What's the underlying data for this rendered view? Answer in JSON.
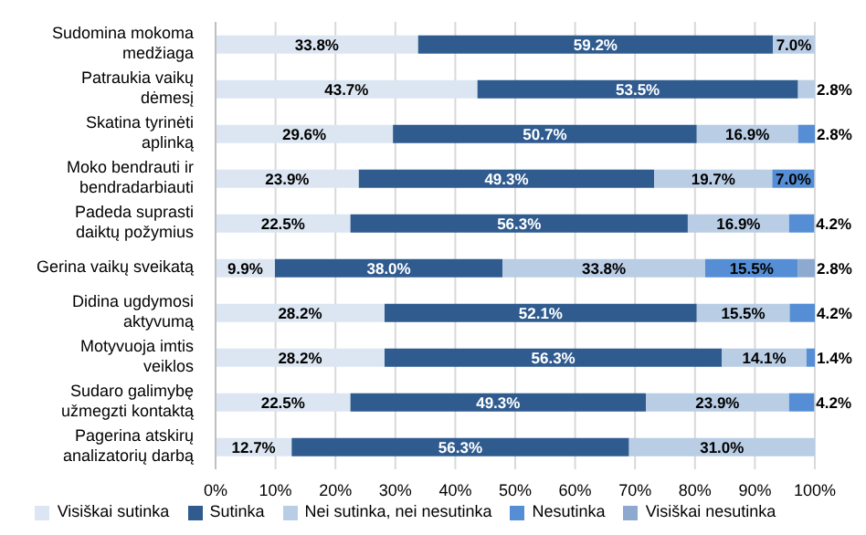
{
  "chart_data": {
    "type": "bar",
    "orientation": "horizontal",
    "stacked": true,
    "categories": [
      "Sudomina mokoma medžiaga",
      "Patraukia vaikų dėmesį",
      "Skatina tyrinėti aplinką",
      "Moko bendrauti ir bendradarbiauti",
      "Padeda suprasti daiktų požymius",
      "Gerina vaikų sveikatą",
      "Didina ugdymosi aktyvumą",
      "Motyvuoja imtis veiklos",
      "Sudaro galimybę užmegzti kontaktą",
      "Pagerina atskirų analizatorių darbą"
    ],
    "series": [
      {
        "name": "Visiškai sutinka",
        "color": "#dce6f2",
        "values": [
          33.8,
          43.7,
          29.6,
          23.9,
          22.5,
          9.9,
          28.2,
          28.2,
          22.5,
          12.7
        ],
        "value_labels": [
          "33.8%",
          "43.7%",
          "29.6%",
          "23.9%",
          "22.5%",
          "9.9%",
          "28.2%",
          "28.2%",
          "22.5%",
          "12.7%"
        ]
      },
      {
        "name": "Sutinka",
        "color": "#2f5b8f",
        "values": [
          59.2,
          53.5,
          50.7,
          49.3,
          56.3,
          38.0,
          52.1,
          56.3,
          49.3,
          56.3
        ],
        "value_labels": [
          "59.2%",
          "53.5%",
          "50.7%",
          "49.3%",
          "56.3%",
          "38.0%",
          "52.1%",
          "56.3%",
          "49.3%",
          "56.3%"
        ]
      },
      {
        "name": "Nei sutinka, nei nesutinka",
        "color": "#b9cde5",
        "values": [
          7.0,
          2.8,
          16.9,
          19.7,
          16.9,
          33.8,
          15.5,
          14.1,
          23.9,
          31.0
        ],
        "value_labels": [
          "7.0%",
          "2.8%",
          "16.9%",
          "19.7%",
          "16.9%",
          "33.8%",
          "15.5%",
          "14.1%",
          "23.9%",
          "31.0%"
        ]
      },
      {
        "name": "Nesutinka",
        "color": "#558ed5",
        "values": [
          null,
          null,
          2.8,
          7.0,
          4.2,
          15.5,
          4.2,
          1.4,
          4.2,
          null
        ],
        "value_labels": [
          null,
          null,
          "2.8%",
          "7.0%",
          "4.2%",
          "15.5%",
          "4.2%",
          "1.4%",
          "4.2%",
          null
        ]
      },
      {
        "name": "Visiškai nesutinka",
        "color": "#8ea9cf",
        "values": [
          null,
          null,
          null,
          null,
          null,
          2.8,
          null,
          null,
          null,
          null
        ],
        "value_labels": [
          null,
          null,
          null,
          null,
          null,
          "2.8%",
          null,
          null,
          null,
          null
        ]
      }
    ],
    "xlim": [
      0,
      100
    ],
    "xticks": [
      {
        "value": 0,
        "label": "0%"
      },
      {
        "value": 10,
        "label": "10%"
      },
      {
        "value": 20,
        "label": "20%"
      },
      {
        "value": 30,
        "label": "30%"
      },
      {
        "value": 40,
        "label": "40%"
      },
      {
        "value": 50,
        "label": "50%"
      },
      {
        "value": 60,
        "label": "60%"
      },
      {
        "value": 70,
        "label": "70%"
      },
      {
        "value": 80,
        "label": "80%"
      },
      {
        "value": 90,
        "label": "90%"
      },
      {
        "value": 100,
        "label": "100%"
      }
    ],
    "grid": "x",
    "legend": "bottom"
  }
}
